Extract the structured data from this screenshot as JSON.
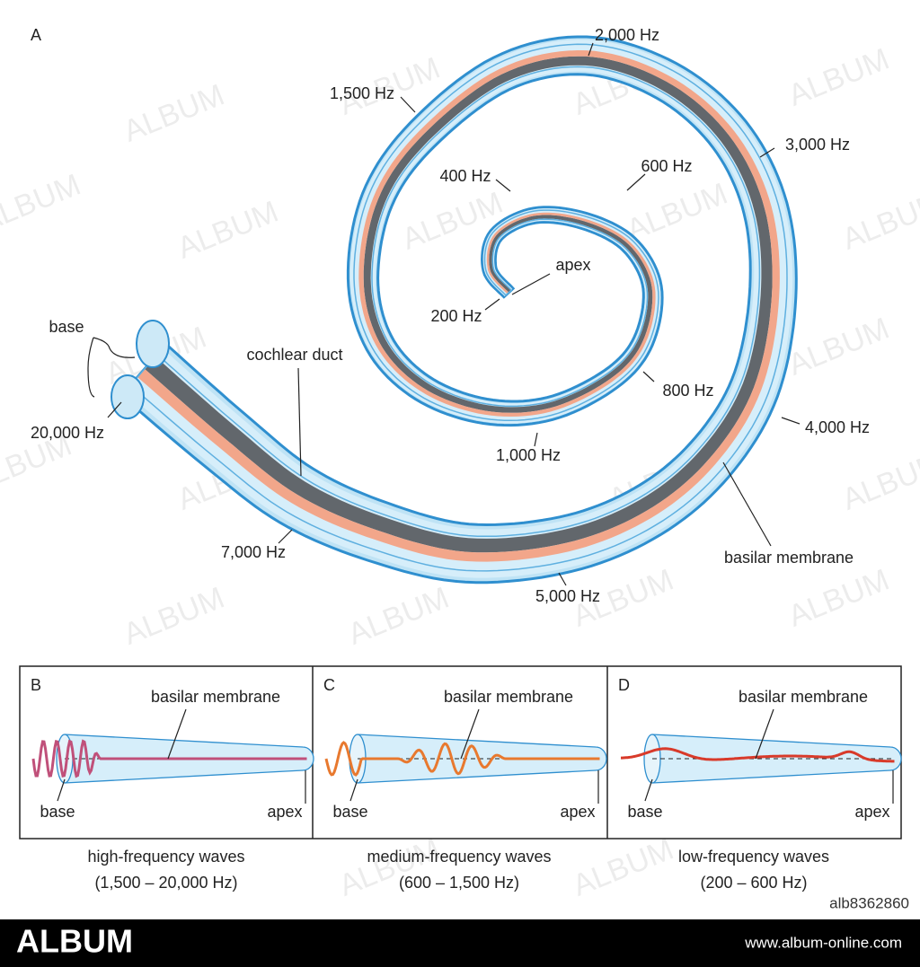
{
  "panel_a": {
    "letter": "A",
    "labels": [
      "2,000 Hz",
      "1,500 Hz",
      "3,000 Hz",
      "600 Hz",
      "400 Hz",
      "apex",
      "200 Hz",
      "base",
      "cochlear duct",
      "20,000 Hz",
      "800 Hz",
      "4,000 Hz",
      "1,000 Hz",
      "7,000 Hz",
      "basilar membrane",
      "5,000 Hz"
    ]
  },
  "panels": [
    {
      "letter": "B",
      "membrane": "basilar membrane",
      "base": "base",
      "apex": "apex",
      "caption": [
        "high-frequency waves",
        "(1,500 – 20,000 Hz)"
      ]
    },
    {
      "letter": "C",
      "membrane": "basilar membrane",
      "base": "base",
      "apex": "apex",
      "caption": [
        "medium-frequency waves",
        "(600 – 1,500 Hz)"
      ]
    },
    {
      "letter": "D",
      "membrane": "basilar membrane",
      "base": "base",
      "apex": "apex",
      "caption": [
        "low-frequency waves",
        "(200 – 600 Hz)"
      ]
    }
  ],
  "watermark": "ALBUM",
  "footer": {
    "brand": "ALBUM",
    "id": "alb8362860",
    "url": "www.album-online.com"
  }
}
